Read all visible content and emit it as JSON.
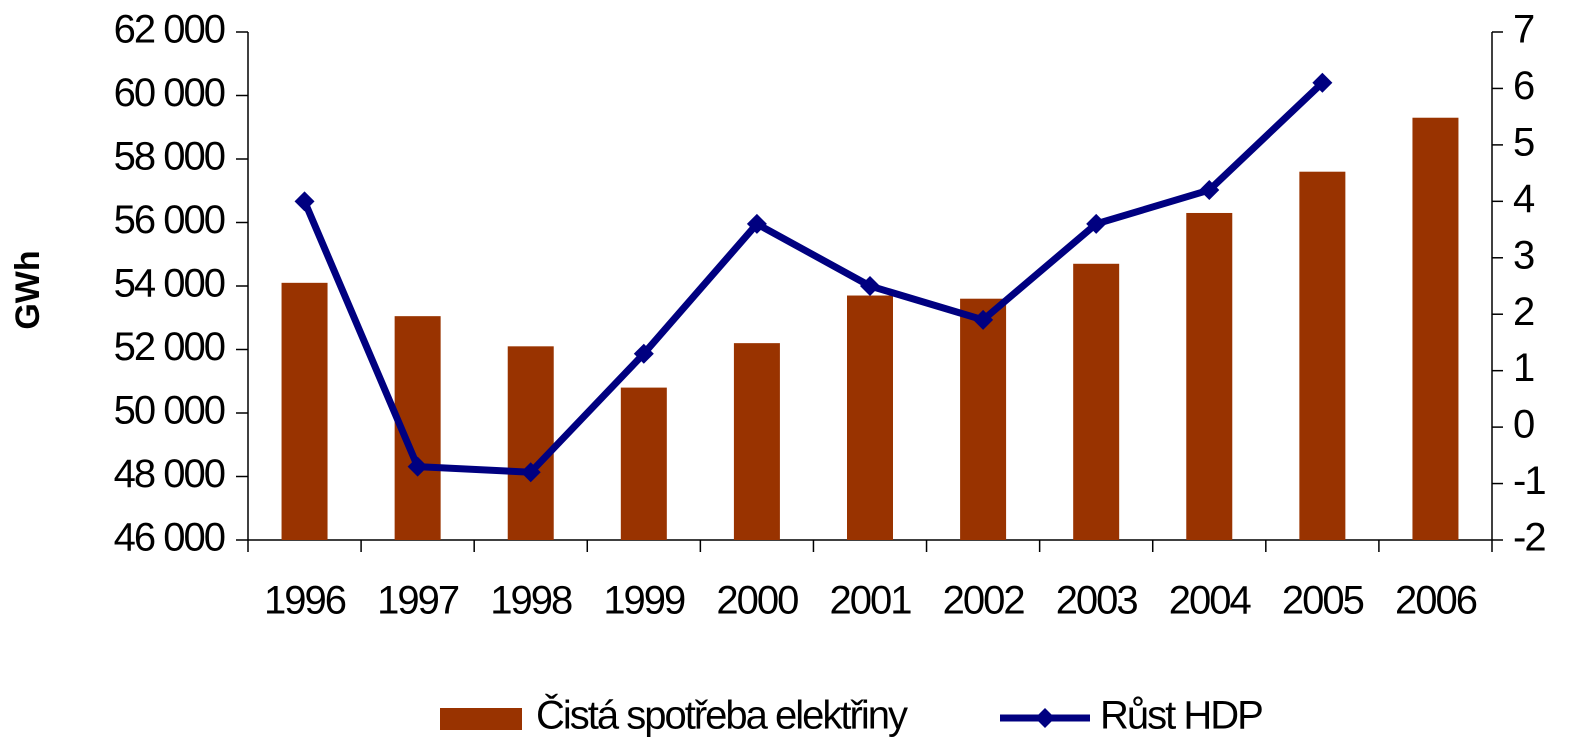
{
  "chart_data": {
    "type": "bar_line",
    "y_label": "GWh",
    "categories": [
      "1996",
      "1997",
      "1998",
      "1999",
      "2000",
      "2001",
      "2002",
      "2003",
      "2004",
      "2005",
      "2006"
    ],
    "series": [
      {
        "name": "Čistá spotřeba elektřiny",
        "color": "#993300",
        "type": "bar",
        "values": [
          54100,
          53050,
          52100,
          50800,
          52200,
          53700,
          53600,
          54700,
          56300,
          57600,
          59300
        ]
      },
      {
        "name": "Růst HDP",
        "color": "#000080",
        "type": "line",
        "axis": "y2",
        "values": [
          4.0,
          -0.7,
          -0.8,
          1.3,
          3.6,
          2.5,
          1.9,
          3.6,
          4.2,
          6.1,
          null
        ]
      }
    ],
    "ylim": [
      46000,
      62000
    ],
    "yticks": [
      {
        "value": 46000,
        "label": "46 000"
      },
      {
        "value": 48000,
        "label": "48 000"
      },
      {
        "value": 50000,
        "label": "50 000"
      },
      {
        "value": 52000,
        "label": "52 000"
      },
      {
        "value": 54000,
        "label": "54 000"
      },
      {
        "value": 56000,
        "label": "56 000"
      },
      {
        "value": 58000,
        "label": "58 000"
      },
      {
        "value": 60000,
        "label": "60 000"
      },
      {
        "value": 62000,
        "label": "62 000"
      }
    ],
    "y2lim": [
      -2,
      7
    ],
    "y2ticks": [
      -2,
      -1,
      0,
      1,
      2,
      3,
      4,
      5,
      6,
      7
    ],
    "grid": false
  }
}
